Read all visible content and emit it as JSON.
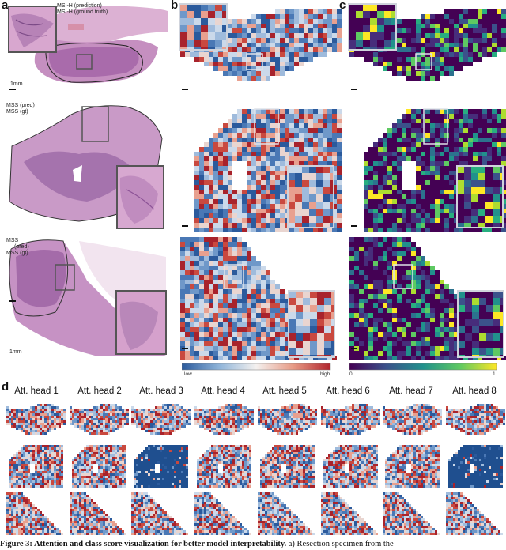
{
  "panels": {
    "a": "a",
    "b": "b",
    "c": "c",
    "d": "d"
  },
  "row1": {
    "label_pred": "MSI-H (prediction)",
    "label_gt": "MSI-H (ground truth)",
    "scale": "1mm"
  },
  "row2": {
    "label_pred": "MSS (pred)",
    "label_gt": "MSS (gt)"
  },
  "row3": {
    "label_pred_a": "MSS",
    "label_pred_b": "(pred)",
    "label_gt": "MSS (gt)",
    "scale": "1mm"
  },
  "colorbar_b": {
    "low": "low",
    "high": "high"
  },
  "colorbar_c": {
    "min": "0",
    "max": "1"
  },
  "heads": [
    "Att. head 1",
    "Att. head 2",
    "Att. head 3",
    "Att. head 4",
    "Att. head 5",
    "Att. head 6",
    "Att. head 7",
    "Att. head 8"
  ],
  "caption": {
    "bold": "Figure 3: Attention and class score visualization for better model interpretability.",
    "rest": " a) Resection specimen from the"
  },
  "colors": {
    "he_pink": "#d9a9cc",
    "he_purple": "#8b4e95",
    "att_blue": "#3b6fb0",
    "att_red": "#c8433c",
    "viridis_purple": "#5b2d7c",
    "viridis_yellow": "#e8e33a"
  }
}
